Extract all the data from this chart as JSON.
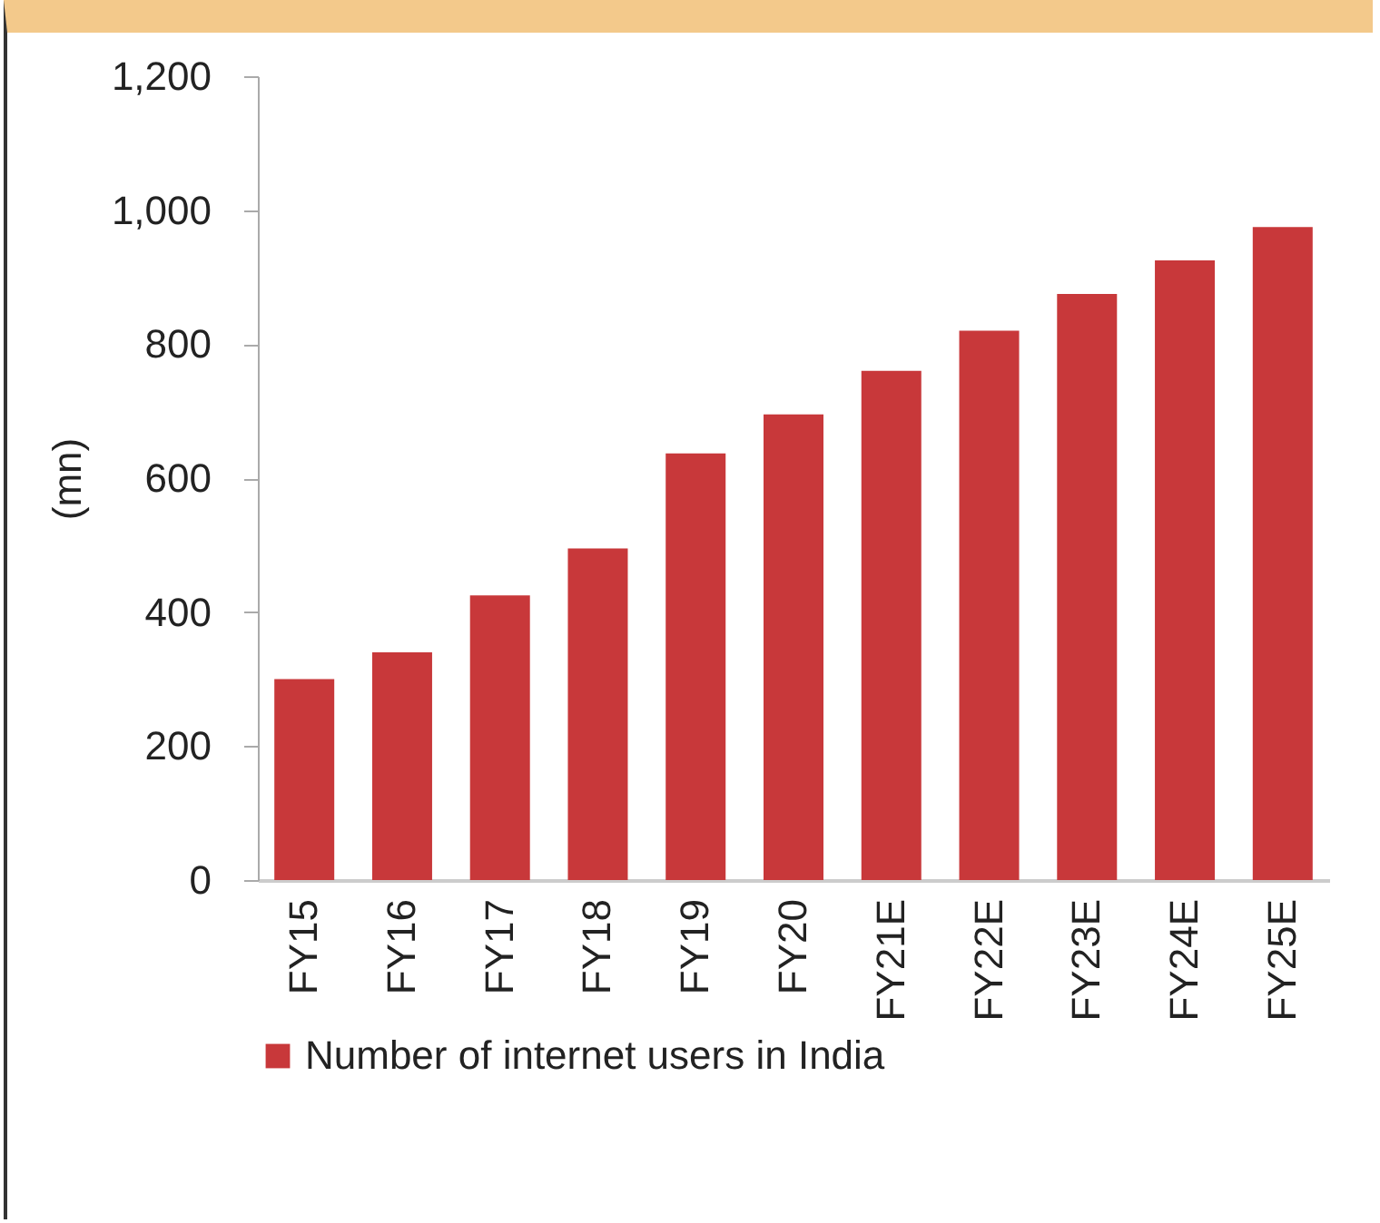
{
  "chart_data": {
    "type": "bar",
    "ylabel": "(mn)",
    "categories": [
      "FY15",
      "FY16",
      "FY17",
      "FY18",
      "FY19",
      "FY20",
      "FY21E",
      "FY22E",
      "FY23E",
      "FY24E",
      "FY25E"
    ],
    "series": [
      {
        "name": "Number of internet users in India",
        "color": "#c8383a",
        "values": [
          300,
          340,
          425,
          495,
          637,
          695,
          760,
          820,
          875,
          925,
          975
        ]
      }
    ],
    "ylim": [
      0,
      1200
    ],
    "yticks": [
      0,
      200,
      400,
      600,
      800,
      {
        "value": 1000,
        "label": "1,000"
      },
      {
        "value": 1200,
        "label": "1,200"
      }
    ],
    "grid": false,
    "legend": "bottom"
  }
}
